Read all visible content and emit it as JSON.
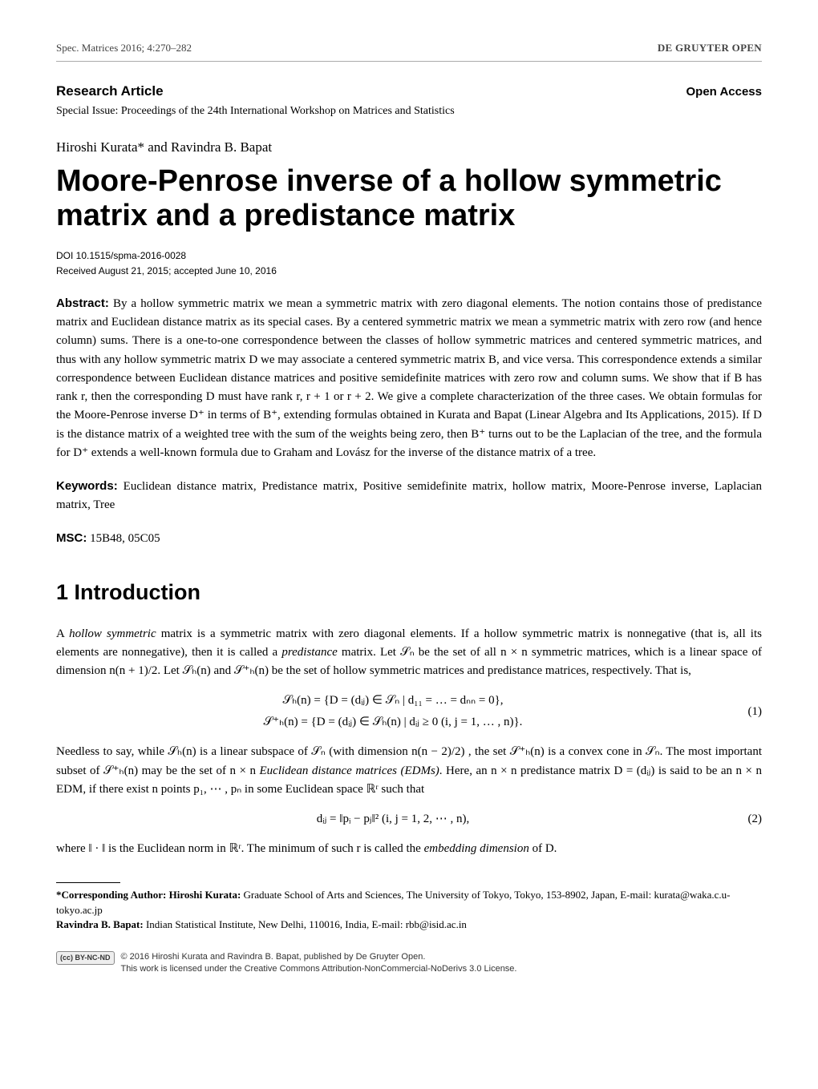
{
  "header": {
    "journal_ref": "Spec. Matrices 2016; 4:270–282",
    "publisher": "DE GRUYTER OPEN"
  },
  "article_meta": {
    "research_article": "Research Article",
    "open_access": "Open Access",
    "special_issue": "Special Issue: Proceedings of the 24th International Workshop on Matrices and Statistics",
    "authors": "Hiroshi Kurata* and Ravindra B. Bapat",
    "title": "Moore-Penrose inverse of a hollow symmetric matrix and a predistance matrix",
    "doi": "DOI 10.1515/spma-2016-0028",
    "received": "Received August 21, 2015; accepted June 10, 2016"
  },
  "abstract": {
    "label": "Abstract:",
    "text": " By a hollow symmetric matrix we mean a symmetric matrix with zero diagonal elements. The notion contains those of predistance matrix and Euclidean distance matrix as its special cases. By a centered symmetric matrix we mean a symmetric matrix with zero row (and hence column) sums. There is a one-to-one correspondence between the classes of hollow symmetric matrices and centered symmetric matrices, and thus with any hollow symmetric matrix D we may associate a centered symmetric matrix B, and vice versa. This correspondence extends a similar correspondence between Euclidean distance matrices and positive semidefinite matrices with zero row and column sums. We show that if B has rank r, then the corresponding D must have rank r, r + 1 or r + 2. We give a complete characterization of the three cases. We obtain formulas for the Moore-Penrose inverse D⁺ in terms of B⁺, extending formulas obtained in Kurata and Bapat (Linear Algebra and Its Applications, 2015). If D is the distance matrix of a weighted tree with the sum of the weights being zero, then B⁺ turns out to be the Laplacian of the tree, and the formula for D⁺ extends a well-known formula due to Graham and Lovász for the inverse of the distance matrix of a tree."
  },
  "keywords": {
    "label": "Keywords:",
    "text": " Euclidean distance matrix, Predistance matrix, Positive semidefinite matrix, hollow matrix, Moore-Penrose inverse, Laplacian matrix, Tree"
  },
  "msc": {
    "label": "MSC:",
    "text": " 15B48, 05C05"
  },
  "section1": {
    "heading": "1 Introduction",
    "para1_pre": "A ",
    "para1_hollow": "hollow symmetric",
    "para1_mid1": " matrix is a symmetric matrix with zero diagonal elements. If a hollow symmetric matrix is nonnegative (that is, all its elements are nonnegative), then it is called a ",
    "para1_pred": "predistance",
    "para1_mid2": " matrix. Let 𝒮ₙ be the set of all n × n symmetric matrices, which is a linear space of dimension n(n + 1)/2. Let 𝒮ₕ(n) and 𝒮⁺ₕ(n) be the set of hollow symmetric matrices and predistance matrices, respectively. That is,",
    "eq1_line1": "𝒮ₕ(n)   =   {D = (dᵢⱼ) ∈ 𝒮ₙ | d₁₁ = … = dₙₙ = 0},",
    "eq1_line2": "𝒮⁺ₕ(n)   =   {D = (dᵢⱼ) ∈ 𝒮ₕ(n) | dᵢⱼ ≥ 0 (i, j = 1, … , n)}.",
    "eq1_num": "(1)",
    "para2_a": "Needless to say, while 𝒮ₕ(n) is a linear subspace of 𝒮ₙ (with dimension n(n − 2)/2) , the set 𝒮⁺ₕ(n) is a convex cone in 𝒮ₙ. The most important subset of 𝒮⁺ₕ(n) may be the set of n × n ",
    "para2_edm": "Euclidean distance matrices (EDMs)",
    "para2_b": ". Here, an n × n predistance matrix D = (dᵢⱼ) is said to be an n × n EDM, if there exist n points p₁, ⋯ , pₙ in some Euclidean space ℝʳ such that",
    "eq2": "dᵢⱼ = ‖pᵢ − pⱼ‖²   (i, j = 1, 2, ⋯ , n),",
    "eq2_num": "(2)",
    "para3_a": "where ‖ · ‖ is the Euclidean norm in ℝʳ. The minimum of such r is called the ",
    "para3_emb": "embedding dimension",
    "para3_b": " of D."
  },
  "footnotes": {
    "corr_label": "*Corresponding Author: Hiroshi Kurata:",
    "corr_text": " Graduate School of Arts and Sciences, The University of Tokyo, Tokyo, 153-8902, Japan, E-mail: kurata@waka.c.u-tokyo.ac.jp",
    "bapat_label": "Ravindra B. Bapat:",
    "bapat_text": " Indian Statistical Institute, New Delhi, 110016, India, E-mail: rbb@isid.ac.in"
  },
  "footer": {
    "cc": "(cc) BY-NC-ND",
    "line1": "© 2016 Hiroshi Kurata and Ravindra B. Bapat, published by De Gruyter Open.",
    "line2": "This work is licensed under the Creative Commons Attribution-NonCommercial-NoDerivs 3.0 License."
  }
}
